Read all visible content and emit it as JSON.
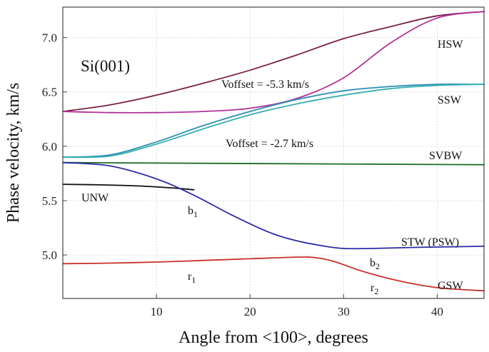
{
  "chart_data": {
    "type": "line",
    "xlabel": "Angle from <100>, degrees",
    "ylabel": "Phase velocity, km/s",
    "xlim": [
      0,
      45
    ],
    "ylim": [
      4.6,
      7.28
    ],
    "x_ticks": [
      10,
      20,
      30,
      40
    ],
    "y_ticks": [
      5.0,
      5.5,
      6.0,
      6.5,
      7.0
    ],
    "x_tick_labels": [
      "10",
      "20",
      "30",
      "40"
    ],
    "y_tick_labels": [
      "5.0",
      "5.5",
      "6.0",
      "6.5",
      "7.0"
    ],
    "grid": true,
    "series": [
      {
        "name": "HSW upper",
        "color": "#7a2048",
        "x": [
          0,
          5,
          10,
          15,
          20,
          25,
          30,
          35,
          40,
          45
        ],
        "y": [
          6.32,
          6.38,
          6.47,
          6.58,
          6.7,
          6.84,
          6.99,
          7.1,
          7.2,
          7.24
        ]
      },
      {
        "name": "HSW lower",
        "color": "#b4309a",
        "x": [
          0,
          5,
          10,
          15,
          20,
          25,
          30,
          35,
          40,
          45
        ],
        "y": [
          6.32,
          6.31,
          6.31,
          6.32,
          6.35,
          6.44,
          6.63,
          6.95,
          7.18,
          7.24
        ]
      },
      {
        "name": "SSW upper",
        "color": "#2a8fb4",
        "x": [
          0,
          5,
          10,
          15,
          20,
          25,
          30,
          35,
          40,
          45
        ],
        "y": [
          5.9,
          5.92,
          6.04,
          6.19,
          6.32,
          6.43,
          6.51,
          6.55,
          6.57,
          6.57
        ]
      },
      {
        "name": "SSW lower",
        "color": "#38aeb0",
        "x": [
          0,
          5,
          10,
          15,
          20,
          25,
          30,
          35,
          40,
          45
        ],
        "y": [
          5.9,
          5.91,
          6.02,
          6.16,
          6.29,
          6.39,
          6.47,
          6.53,
          6.56,
          6.57
        ]
      },
      {
        "name": "SVBW",
        "color": "#1f6e2a",
        "x": [
          0,
          45
        ],
        "y": [
          5.85,
          5.83
        ]
      },
      {
        "name": "UNW",
        "color": "#111111",
        "x": [
          0,
          4,
          8,
          12,
          14
        ],
        "y": [
          5.65,
          5.645,
          5.635,
          5.615,
          5.6
        ]
      },
      {
        "name": "STW (PSW)",
        "color": "#2b2ba5",
        "x": [
          0,
          5,
          10,
          14,
          18,
          22,
          25,
          28,
          30,
          33,
          38,
          45
        ],
        "y": [
          5.85,
          5.82,
          5.7,
          5.55,
          5.37,
          5.21,
          5.13,
          5.08,
          5.06,
          5.06,
          5.07,
          5.08
        ]
      },
      {
        "name": "GSW",
        "color": "#c8302c",
        "x": [
          0,
          5,
          10,
          15,
          20,
          25,
          27,
          29,
          32,
          36,
          40,
          45
        ],
        "y": [
          4.92,
          4.925,
          4.935,
          4.95,
          4.965,
          4.98,
          4.975,
          4.94,
          4.85,
          4.76,
          4.7,
          4.67
        ]
      }
    ],
    "annotations": {
      "sample": "Si(001)",
      "offset1": "Voffset = -5.3 km/s",
      "offset2": "Voffset = -2.7 km/s",
      "hsw": "HSW",
      "ssw": "SSW",
      "svbw": "SVBW",
      "unw": "UNW",
      "stw": "STW (PSW)",
      "gsw": "GSW",
      "b1_main": "b",
      "b1_sub": "1",
      "b2_main": "b",
      "b2_sub": "2",
      "r1_main": "r",
      "r1_sub": "1",
      "r2_main": "r",
      "r2_sub": "2"
    },
    "annotation_colors": {
      "b": "#2b4fb0",
      "r": "#c8302c"
    }
  }
}
